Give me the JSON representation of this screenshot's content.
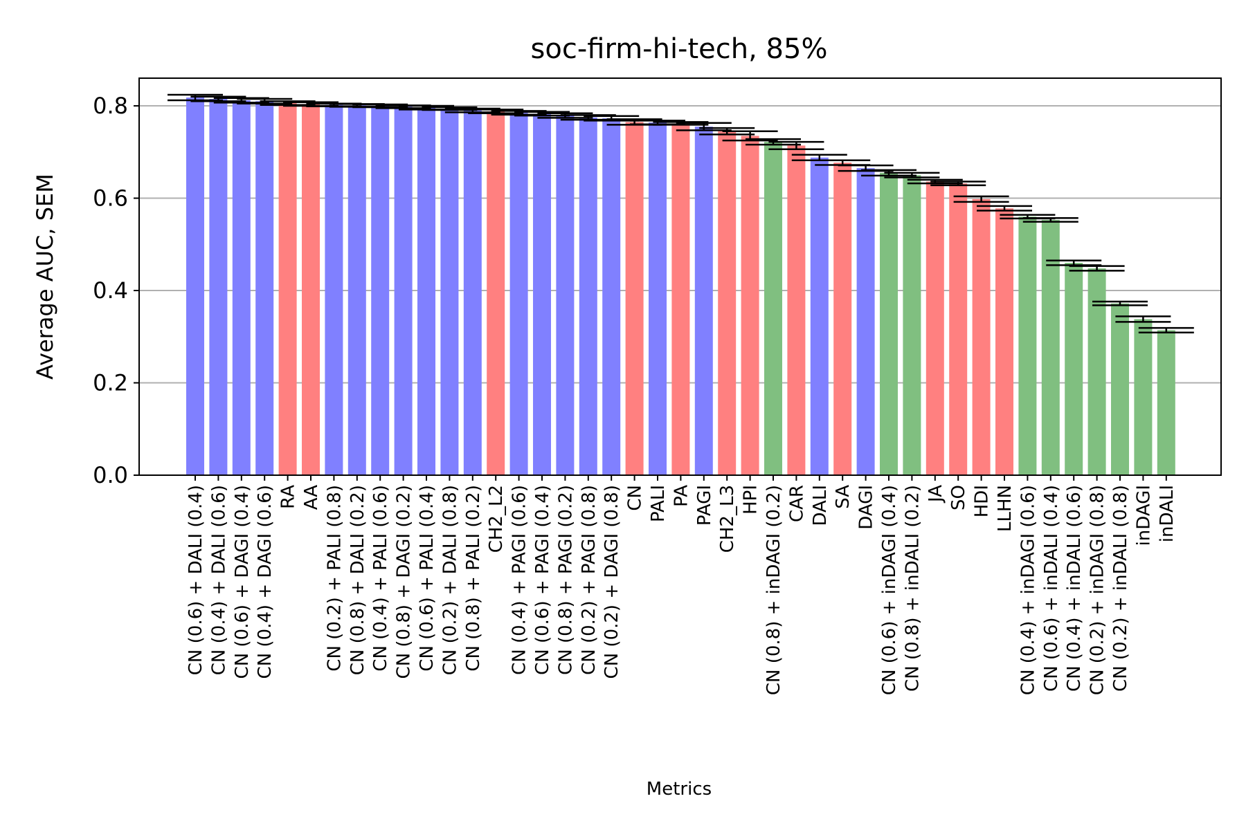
{
  "colors": {
    "blue": "#8080ff",
    "red": "#ff8080",
    "green": "#80bf80",
    "grid": "#b0b0b0",
    "error_bar": "#000000"
  },
  "chart_data": {
    "type": "bar",
    "title": "soc-firm-hi-tech, 85%",
    "xlabel": "Metrics",
    "ylabel": "Average AUC, SEM",
    "ylim": [
      0,
      0.86
    ],
    "yticks": [
      "0.0",
      "0.2",
      "0.4",
      "0.6",
      "0.8"
    ],
    "ytick_values": [
      0,
      0.2,
      0.4,
      0.6,
      0.8
    ],
    "grid": "horizontal",
    "categories": [
      "CN (0.6) + DALI (0.4)",
      "CN (0.4) + DALI (0.6)",
      "CN (0.6) + DAGI (0.4)",
      "CN (0.4) + DAGI (0.6)",
      "RA",
      "AA",
      "CN (0.2) + PALI (0.8)",
      "CN (0.8) + DALI (0.2)",
      "CN (0.4) + PALI (0.6)",
      "CN (0.8) + DAGI (0.2)",
      "CN (0.6) + PALI (0.4)",
      "CN (0.2) + DALI (0.8)",
      "CN (0.8) + PALI (0.2)",
      "CH2_L2",
      "CN (0.4) + PAGI (0.6)",
      "CN (0.6) + PAGI (0.4)",
      "CN (0.8) + PAGI (0.2)",
      "CN (0.2) + PAGI (0.8)",
      "CN (0.2) + DAGI (0.8)",
      "CN",
      "PALI",
      "PA",
      "PAGI",
      "CH2_L3",
      "HPI",
      "CN (0.8) + inDAGI (0.2)",
      "CAR",
      "DALI",
      "SA",
      "DAGI",
      "CN (0.6) + inDAGI (0.4)",
      "CN (0.8) + inDALI (0.2)",
      "JA",
      "SO",
      "HDI",
      "LLHN",
      "CN (0.4) + inDAGI (0.6)",
      "CN (0.6) + inDALI (0.4)",
      "CN (0.4) + inDALI (0.6)",
      "CN (0.2) + inDAGI (0.8)",
      "CN (0.2) + inDALI (0.8)",
      "inDAGI",
      "inDALI"
    ],
    "values": [
      0.818,
      0.815,
      0.812,
      0.81,
      0.806,
      0.804,
      0.802,
      0.801,
      0.8,
      0.798,
      0.796,
      0.794,
      0.79,
      0.788,
      0.785,
      0.783,
      0.779,
      0.775,
      0.773,
      0.765,
      0.764,
      0.762,
      0.755,
      0.745,
      0.735,
      0.722,
      0.714,
      0.688,
      0.677,
      0.665,
      0.655,
      0.65,
      0.636,
      0.632,
      0.598,
      0.578,
      0.56,
      0.553,
      0.46,
      0.448,
      0.372,
      0.338,
      0.314
    ],
    "errors": [
      0.006,
      0.005,
      0.005,
      0.005,
      0.004,
      0.004,
      0.003,
      0.003,
      0.003,
      0.003,
      0.004,
      0.003,
      0.004,
      0.004,
      0.004,
      0.004,
      0.005,
      0.005,
      0.005,
      0.006,
      0.004,
      0.003,
      0.008,
      0.007,
      0.01,
      0.006,
      0.008,
      0.006,
      0.005,
      0.006,
      0.006,
      0.005,
      0.004,
      0.004,
      0.006,
      0.005,
      0.004,
      0.004,
      0.005,
      0.005,
      0.004,
      0.006,
      0.005
    ],
    "bar_colors": [
      "blue",
      "blue",
      "blue",
      "blue",
      "red",
      "red",
      "blue",
      "blue",
      "blue",
      "blue",
      "blue",
      "blue",
      "blue",
      "red",
      "blue",
      "blue",
      "blue",
      "blue",
      "blue",
      "red",
      "blue",
      "red",
      "blue",
      "red",
      "red",
      "green",
      "red",
      "blue",
      "red",
      "blue",
      "green",
      "green",
      "red",
      "red",
      "red",
      "red",
      "green",
      "green",
      "green",
      "green",
      "green",
      "green",
      "green"
    ]
  }
}
